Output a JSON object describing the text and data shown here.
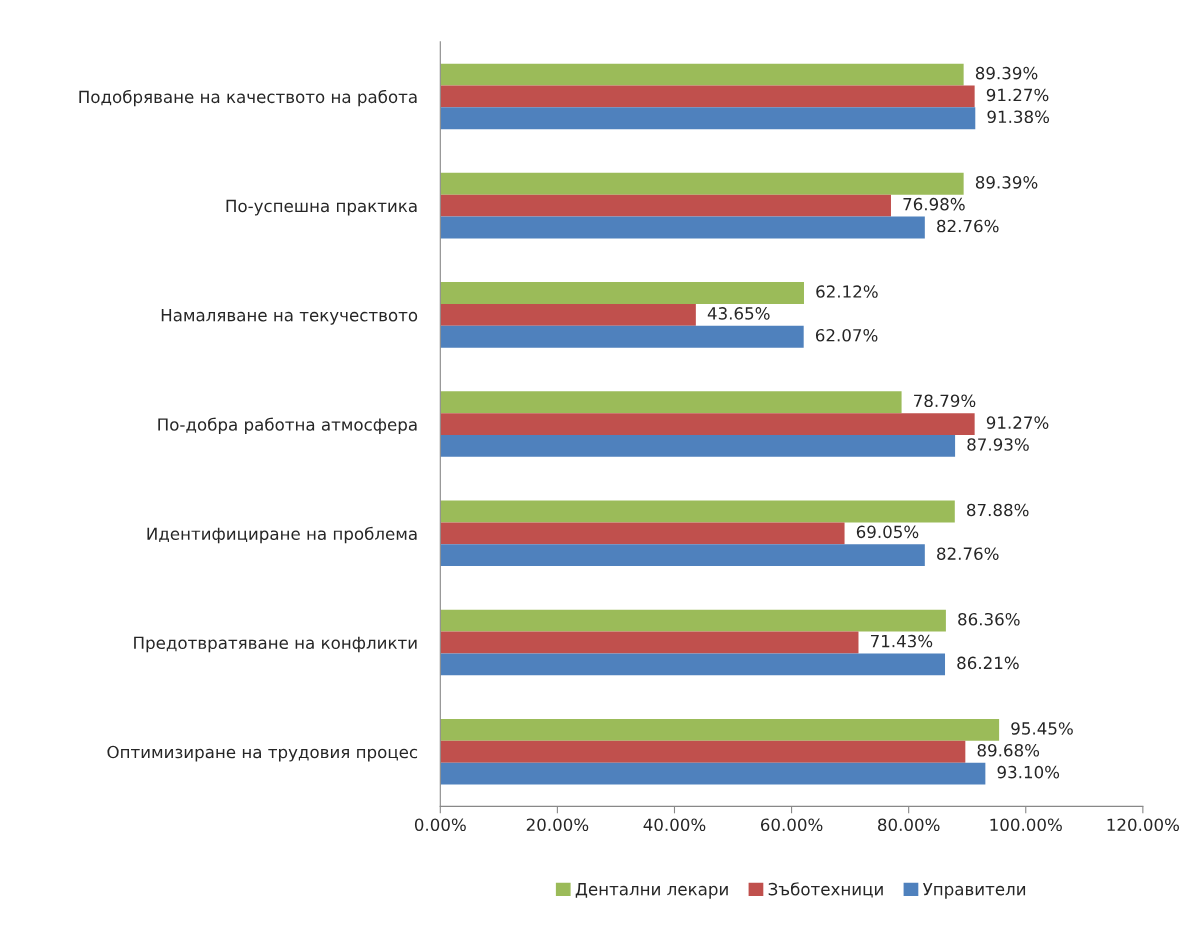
{
  "chart_data": {
    "type": "bar",
    "orientation": "horizontal",
    "categories": [
      "Подобряване на качеството на работа",
      "По-успешна практика",
      "Намаляване на текучеството",
      "По-добра работна атмосфера",
      "Идентифициране на проблема",
      "Предотвратяване на конфликти",
      "Оптимизиране на трудовия процес"
    ],
    "series": [
      {
        "name": "Дентални лекари",
        "color": "#9bbb59",
        "values": [
          89.39,
          89.39,
          62.12,
          78.79,
          87.88,
          86.36,
          95.45
        ],
        "value_labels": [
          "89.39%",
          "89.39%",
          "62.12%",
          "78.79%",
          "87.88%",
          "86.36%",
          "95.45%"
        ]
      },
      {
        "name": "Зъботехници",
        "color": "#c0504d",
        "values": [
          91.27,
          76.98,
          43.65,
          91.27,
          69.05,
          71.43,
          89.68
        ],
        "value_labels": [
          "91.27%",
          "76.98%",
          "43.65%",
          "91.27%",
          "69.05%",
          "71.43%",
          "89.68%"
        ]
      },
      {
        "name": "Управители",
        "color": "#4f81bd",
        "values": [
          91.38,
          82.76,
          62.07,
          87.93,
          82.76,
          86.21,
          93.1
        ],
        "value_labels": [
          "91.38%",
          "82.76%",
          "62.07%",
          "87.93%",
          "82.76%",
          "86.21%",
          "93.10%"
        ]
      }
    ],
    "xlim": [
      0,
      120
    ],
    "xticks": [
      {
        "value": 0,
        "label": "0.00%"
      },
      {
        "value": 20,
        "label": "20.00%"
      },
      {
        "value": 40,
        "label": "40.00%"
      },
      {
        "value": 60,
        "label": "60.00%"
      },
      {
        "value": 80,
        "label": "80.00%"
      },
      {
        "value": 100,
        "label": "100.00%"
      },
      {
        "value": 120,
        "label": "120.00%"
      }
    ],
    "grid": false,
    "legend": "bottom"
  }
}
